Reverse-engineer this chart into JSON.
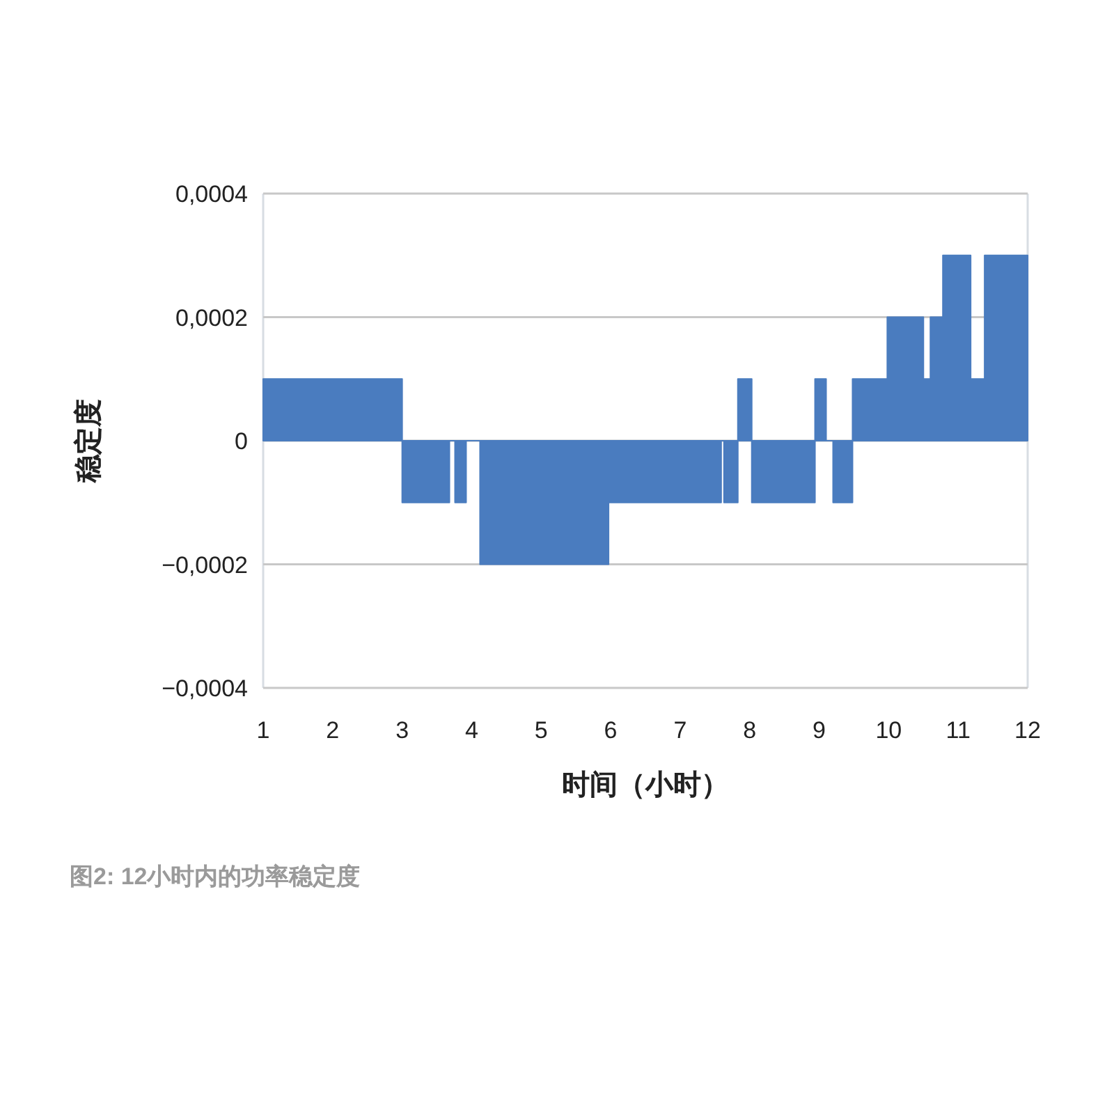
{
  "chart_data": {
    "type": "area",
    "xlabel": "时间（小时）",
    "ylabel": "稳定度",
    "annotations": [
      "图2: 12小时内的功率稳定度"
    ],
    "x": [
      1,
      3,
      3,
      3.68,
      3.68,
      3.76,
      3.76,
      3.92,
      3.92,
      4.12,
      4.12,
      5.97,
      5.97,
      7.59,
      7.59,
      7.63,
      7.63,
      7.83,
      7.83,
      8.03,
      8.03,
      8.94,
      8.94,
      9.1,
      9.1,
      9.2,
      9.2,
      9.48,
      9.48,
      9.98,
      9.98,
      10.5,
      10.5,
      10.6,
      10.6,
      10.78,
      10.78,
      11.18,
      11.18,
      11.38,
      11.38,
      12
    ],
    "series": [
      {
        "color": "#4a7cbf",
        "values": [
          0.0001,
          0.0001,
          -0.0001,
          -0.0001,
          0,
          0,
          -0.0001,
          -0.0001,
          0,
          0,
          -0.0002,
          -0.0002,
          -0.0001,
          -0.0001,
          0,
          0,
          -0.0001,
          -0.0001,
          0.0001,
          0.0001,
          -0.0001,
          -0.0001,
          0.0001,
          0.0001,
          0,
          0,
          -0.0001,
          -0.0001,
          0.0001,
          0.0001,
          0.0002,
          0.0002,
          0.0001,
          0.0001,
          0.0002,
          0.0002,
          0.0003,
          0.0003,
          0.0001,
          0.0001,
          0.0003,
          0.0003
        ]
      }
    ],
    "xlim": [
      1,
      12
    ],
    "xticks": [
      1,
      2,
      3,
      4,
      5,
      6,
      7,
      8,
      9,
      10,
      11,
      12
    ],
    "ylim": [
      -0.0004,
      0.0004
    ],
    "yticks": [
      {
        "value": 0.0004,
        "label": "0,0004"
      },
      {
        "value": 0.0002,
        "label": "0,0002"
      },
      0,
      {
        "value": -0.0002,
        "label": "−0,0002"
      },
      {
        "value": -0.0004,
        "label": "−0,0004"
      }
    ],
    "grid": "y"
  }
}
